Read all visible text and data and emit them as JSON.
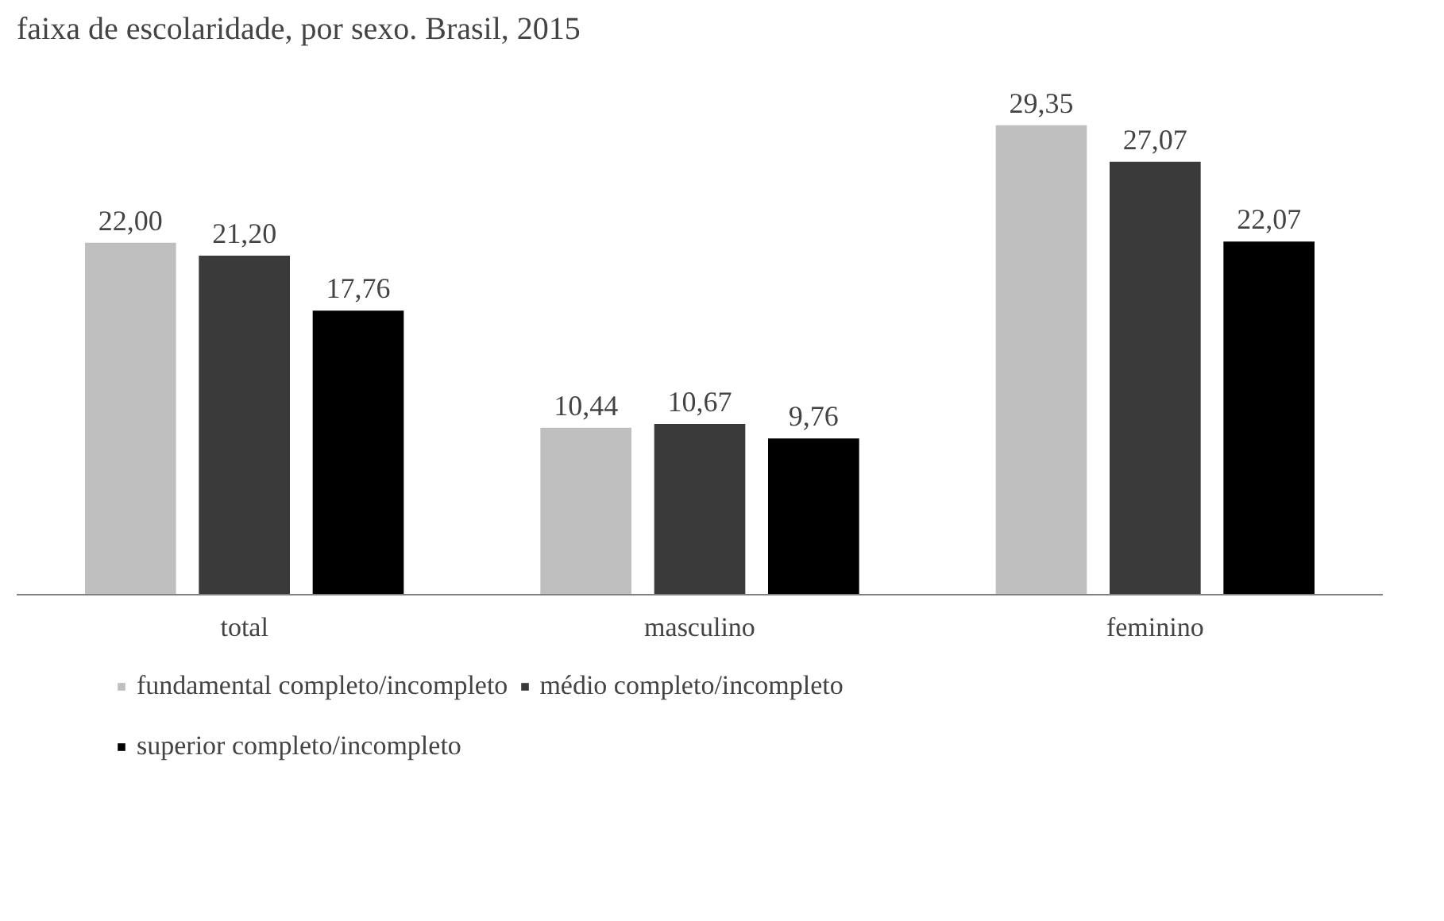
{
  "chart_data": {
    "type": "bar",
    "title": "faixa de escolaridade, por sexo. Brasil, 2015",
    "categories": [
      "total",
      "masculino",
      "feminino"
    ],
    "series": [
      {
        "name": "fundamental completo/incompleto",
        "color": "#bfbfbf",
        "values": [
          22.0,
          10.44,
          29.35
        ],
        "value_labels": [
          "22,00",
          "10,44",
          "29,35"
        ]
      },
      {
        "name": "médio completo/incompleto",
        "color": "#3a3a3a",
        "values": [
          21.2,
          10.67,
          27.07
        ],
        "value_labels": [
          "21,20",
          "10,67",
          "27,07"
        ]
      },
      {
        "name": "superior completo/incompleto",
        "color": "#000000",
        "values": [
          17.76,
          9.76,
          22.07
        ],
        "value_labels": [
          "17,76",
          "9,76",
          "22,07"
        ]
      }
    ],
    "legend": "bottom"
  }
}
